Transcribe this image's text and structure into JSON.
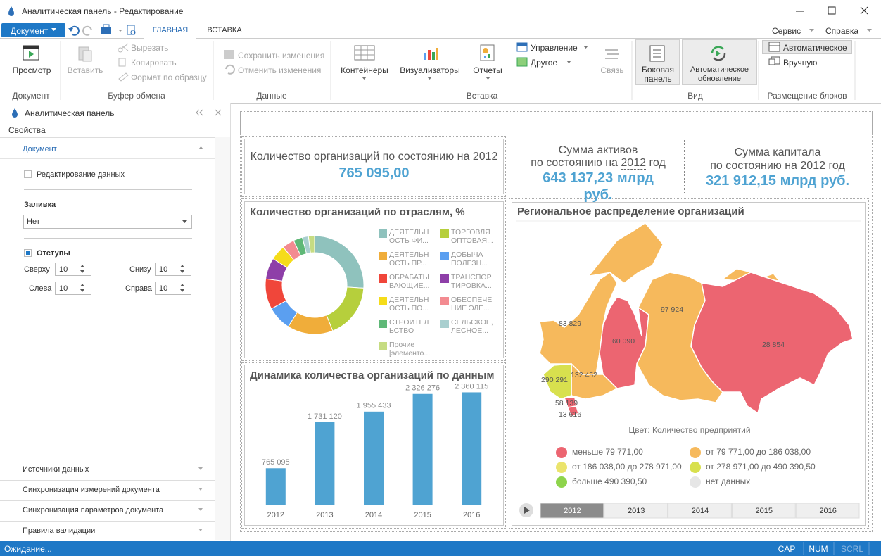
{
  "window": {
    "title": "Аналитическая панель - Редактирование"
  },
  "menu": {
    "document_button": "Документ",
    "tabs": [
      "ГЛАВНАЯ",
      "ВСТАВКА"
    ],
    "right": [
      "Сервис",
      "Справка"
    ]
  },
  "ribbon": {
    "groups": [
      {
        "label": "Документ",
        "items": [
          "Просмотр"
        ]
      },
      {
        "label": "Буфер обмена",
        "items": [
          "Вставить",
          "Вырезать",
          "Копировать",
          "Формат по образцу"
        ]
      },
      {
        "label": "Данные",
        "items": [
          "Сохранить изменения",
          "Отменить изменения"
        ]
      },
      {
        "label": "Вставка",
        "items": [
          "Контейнеры",
          "Визуализаторы",
          "Отчеты",
          "Управление",
          "Другое",
          "Связь"
        ]
      },
      {
        "label": "Вид",
        "items": [
          "Боковая панель",
          "Автоматическое обновление"
        ]
      },
      {
        "label": "Размещение блоков",
        "items": [
          "Автоматическое",
          "Вручную"
        ]
      }
    ]
  },
  "side_panel": {
    "title": "Аналитическая панель",
    "tab": "Свойства",
    "section": "Документ",
    "checkbox": "Редактирование данных",
    "fill_label": "Заливка",
    "fill_value": "Нет",
    "margins_label": "Отступы",
    "margins": [
      {
        "label": "Сверху",
        "value": 10
      },
      {
        "label": "Снизу",
        "value": 10
      },
      {
        "label": "Слева",
        "value": 10
      },
      {
        "label": "Справа",
        "value": 10
      }
    ],
    "collapsed_sections": [
      "Источники данных",
      "Синхронизация измерений документа",
      "Синхронизация параметров документа",
      "Правила валидации"
    ]
  },
  "dashboard": {
    "kpis": [
      {
        "title": "Количество организаций по состоянию на",
        "year": "2012",
        "value": "765 095,00"
      },
      {
        "title": "Сумма активов",
        "subtitle": "по состоянию на",
        "year": "2012",
        "suffix": "год",
        "value": "643 137,23 млрд руб."
      },
      {
        "title": "Сумма капитала",
        "subtitle": "по состоянию на",
        "year": "2012",
        "suffix": "год",
        "value": "321 912,15 млрд руб."
      }
    ],
    "map": {
      "title": "Региональное распределение организаций",
      "regions": [
        {
          "label": "83 829",
          "color": "#f6b95c"
        },
        {
          "label": "60 090",
          "color": "#ec6571"
        },
        {
          "label": "97 924",
          "color": "#f6b95c"
        },
        {
          "label": "28 854",
          "color": "#ec6571"
        },
        {
          "label": "132 452",
          "color": "#f6b95c"
        },
        {
          "label": "290 291",
          "color": "#d8e04e"
        },
        {
          "label": "58 139",
          "color": "#ec6571"
        },
        {
          "label": "13 616",
          "color": "#ec6571"
        }
      ],
      "legend_title": "Цвет: Количество предприятий",
      "legend": [
        {
          "label": "меньше 79 771,00",
          "color": "#ec6571"
        },
        {
          "label": "от 79 771,00 до 186 038,00",
          "color": "#f6b95c"
        },
        {
          "label": "от 186 038,00 до 278 971,00",
          "color": "#ebe46c"
        },
        {
          "label": "от 278 971,00 до 490 390,50",
          "color": "#d8e04e"
        },
        {
          "label": "больше 490 390,50",
          "color": "#8ed44c"
        },
        {
          "label": "нет данных",
          "color": "#e6e6e6"
        }
      ],
      "timeline": [
        "2012",
        "2013",
        "2014",
        "2015",
        "2016"
      ],
      "timeline_active": 0
    }
  },
  "chart_data": [
    {
      "type": "donut",
      "title": "Количество организаций по отраслям, %",
      "categories": [
        "ДЕЯТЕЛЬН ОСТЬ ФИ...",
        "ТОРГОВЛЯ ОПТОВАЯ...",
        "ДЕЯТЕЛЬН ОСТЬ ПР...",
        "ДОБЫЧА ПОЛЕЗН...",
        "ОБРАБАТЫ ВАЮЩИЕ...",
        "ТРАНСПОР ТИРОВКА...",
        "ДЕЯТЕЛЬН ОСТЬ ПО...",
        "ОБЕСПЕЧЕ НИЕ ЭЛЕ...",
        "СТРОИТЕЛ ЬСТВО",
        "СЕЛЬСКОЕ, ЛЕСНОЕ...",
        "Прочие [элементо..."
      ],
      "values": [
        26,
        18,
        15,
        8,
        10,
        7,
        5,
        4,
        3,
        2,
        2
      ],
      "colors": [
        "#8fc2bd",
        "#b6cf3c",
        "#f0ad3a",
        "#5b9ff0",
        "#f0463a",
        "#8e3fa8",
        "#f5dc1a",
        "#f38b91",
        "#5fb877",
        "#a9cfcf",
        "#c6dc82"
      ]
    },
    {
      "type": "bar",
      "title": "Динамика количества организаций по данным",
      "categories": [
        "2012",
        "2013",
        "2014",
        "2015",
        "2016"
      ],
      "values": [
        765095,
        1731120,
        1955433,
        2326276,
        2360115
      ],
      "value_labels": [
        "765 095",
        "1 731 120",
        "1 955 433",
        "2 326 276",
        "2 360 115"
      ],
      "color": "#4fa3d2",
      "ylim": [
        0,
        2500000
      ]
    }
  ],
  "status_bar": {
    "text": "Ожидание...",
    "indicators": [
      "CAP",
      "NUM",
      "SCRL"
    ]
  }
}
